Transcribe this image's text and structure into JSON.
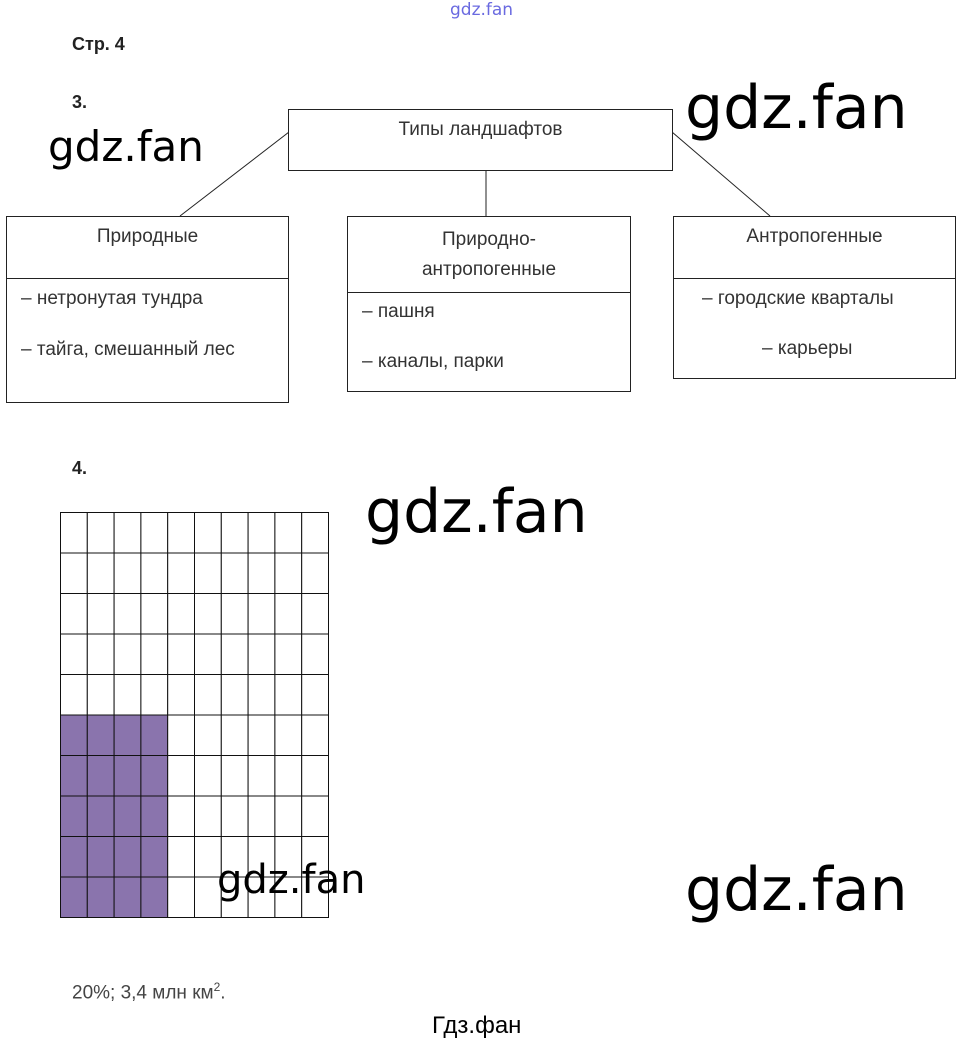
{
  "watermarks": {
    "top": "gdz.fan",
    "large": "gdz.fan",
    "footer": "Гдз.фан"
  },
  "page_label": "Стр. 4",
  "task3": {
    "number": "3.",
    "root": "Типы ландшафтов",
    "branches": [
      {
        "title": "Природные",
        "items": [
          "– нетронутая тундра",
          "– тайга, смешанный лес"
        ]
      },
      {
        "title": "Природно-антропогенные",
        "items": [
          "– пашня",
          "– каналы, парки"
        ]
      },
      {
        "title": "Антропогенные",
        "items": [
          "– городские кварталы",
          "– карьеры"
        ]
      }
    ]
  },
  "task4": {
    "number": "4.",
    "grid": {
      "rows": 10,
      "cols": 10,
      "shaded_cols": 4,
      "shaded_rows": 5,
      "shaded_position": "bottom-left",
      "shaded_percent": 20,
      "shade_color": "#8a74ad"
    },
    "answer": "20%; 3,4 млн км",
    "answer_sup": "2",
    "answer_end": "."
  }
}
